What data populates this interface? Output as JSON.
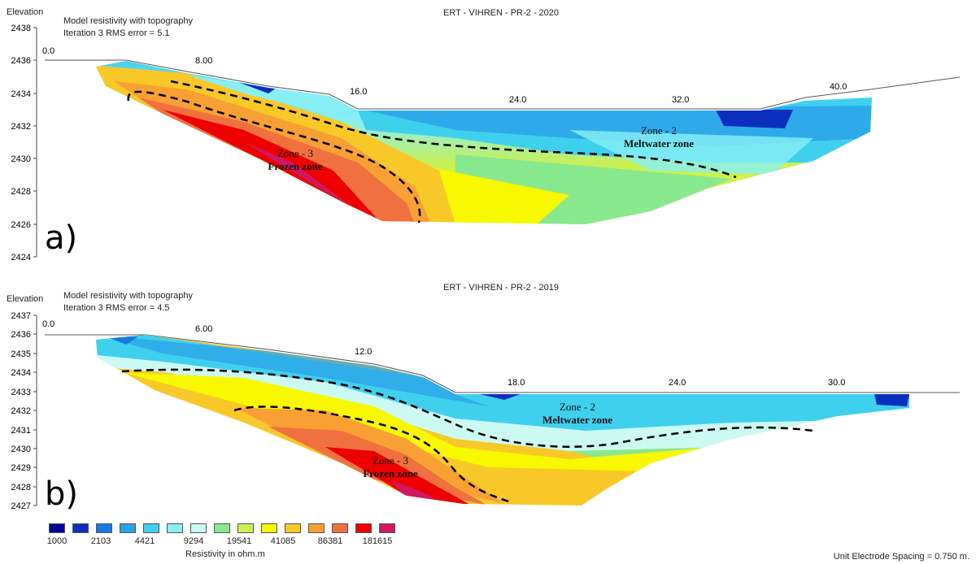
{
  "chart_data": [
    {
      "type": "heatmap",
      "panel_letter": "a)",
      "title": "ERT - VIHREN - PR-2 - 2020",
      "subtitle": "Model resistivity with topography",
      "iteration_text": "Iteration 3 RMS error = 5.1",
      "ylabel": "Elevation",
      "ylim": [
        2424,
        2438
      ],
      "y_ticks": [
        "2438",
        "2436",
        "2434",
        "2432",
        "2430",
        "2428",
        "2426",
        "2424"
      ],
      "x_ticks": [
        "0.0",
        "8.00",
        "16.0",
        "24.0",
        "32.0",
        "40.0"
      ],
      "zones": [
        {
          "name": "Zone - 3",
          "desc": "Frozen zone"
        },
        {
          "name": "Zone - 2",
          "desc": "Meltwater  zone"
        }
      ]
    },
    {
      "type": "heatmap",
      "panel_letter": "b)",
      "title": "ERT - VIHREN - PR-2 - 2019",
      "subtitle": "Model resistivity with topography",
      "iteration_text": "Iteration 3 RMS error = 4.5",
      "ylabel": "Elevation",
      "ylim": [
        2427,
        2437
      ],
      "y_ticks": [
        "2437",
        "2436",
        "2435",
        "2434",
        "2433",
        "2432",
        "2431",
        "2430",
        "2429",
        "2428",
        "2427"
      ],
      "x_ticks": [
        "0.0",
        "6.00",
        "12.0",
        "18.0",
        "24.0",
        "30.0"
      ],
      "zones": [
        {
          "name": "Zone - 2",
          "desc": "Meltwater  zone"
        },
        {
          "name": "Zone - 3",
          "desc": "Frozen zone"
        }
      ]
    }
  ],
  "legend": {
    "title": "Resistivity in ohm.m",
    "labels": [
      "1000",
      "2103",
      "4421",
      "9294",
      "19541",
      "41085",
      "86381",
      "181615"
    ],
    "colors": [
      "#000099",
      "#0a2fbf",
      "#1a78e0",
      "#2aa0e8",
      "#3fd0ee",
      "#88f0f4",
      "#ccfaf2",
      "#88e88e",
      "#c8f055",
      "#f8f800",
      "#f8c828",
      "#f8a034",
      "#f07040",
      "#ee0000",
      "#d01860"
    ]
  },
  "footer": {
    "unit_spacing": "Unit Electrode Spacing = 0.750 m."
  }
}
